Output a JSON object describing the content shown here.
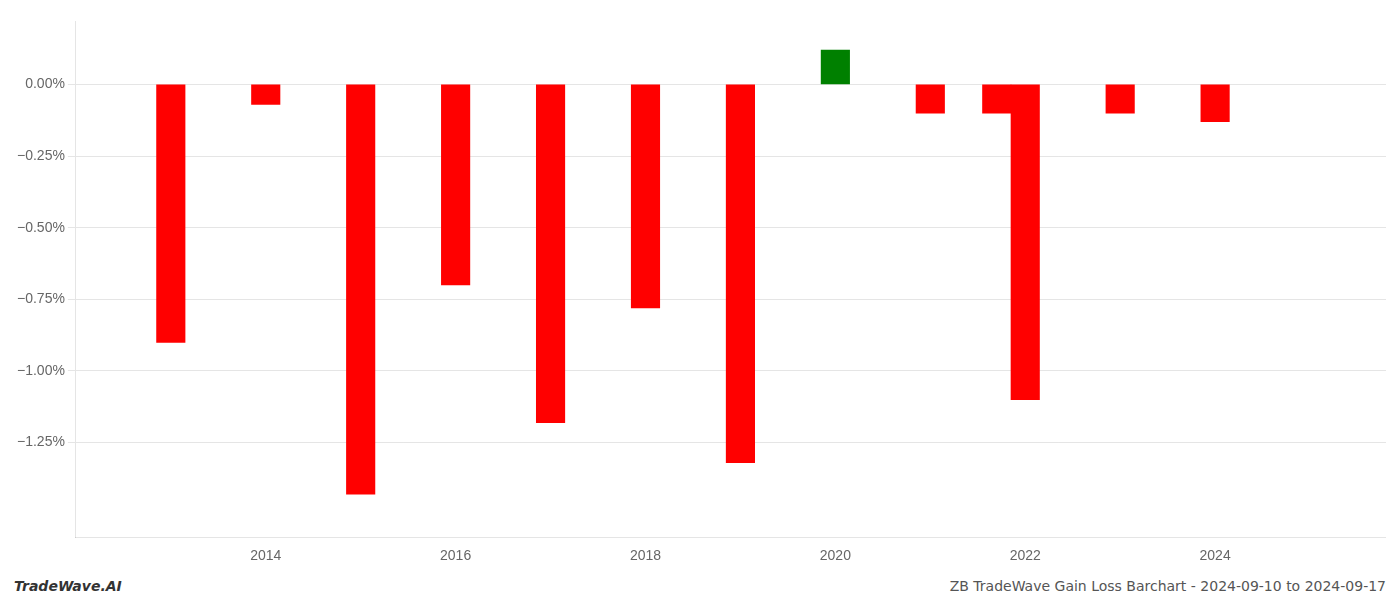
{
  "chart_data": {
    "type": "bar",
    "x": [
      2013,
      2014,
      2015,
      2016,
      2017,
      2018,
      2019,
      2020,
      2021,
      2021.7,
      2022,
      2023,
      2024
    ],
    "values": [
      -0.9,
      -0.07,
      -1.43,
      -0.7,
      -1.18,
      -0.78,
      -1.32,
      0.12,
      -0.1,
      -0.1,
      -1.1,
      -0.1,
      -0.13
    ],
    "colors": [
      "#ff0000",
      "#ff0000",
      "#ff0000",
      "#ff0000",
      "#ff0000",
      "#ff0000",
      "#ff0000",
      "#008000",
      "#ff0000",
      "#ff0000",
      "#ff0000",
      "#ff0000",
      "#ff0000"
    ],
    "xlim": [
      2012.0,
      2025.8
    ],
    "xticks": [
      2014,
      2016,
      2018,
      2020,
      2022,
      2024
    ],
    "ylim": [
      -1.58,
      0.22
    ],
    "yticks": [
      {
        "value": 0.0,
        "label": "0.00%"
      },
      {
        "value": -0.25,
        "label": "−0.25%"
      },
      {
        "value": -0.5,
        "label": "−0.50%"
      },
      {
        "value": -0.75,
        "label": "−0.75%"
      },
      {
        "value": -1.0,
        "label": "−1.00%"
      },
      {
        "value": -1.25,
        "label": "−1.25%"
      }
    ],
    "grid": "y",
    "annotations": [
      "TradeWave.AI",
      "ZB TradeWave Gain Loss Barchart - 2024-09-10 to 2024-09-17"
    ]
  }
}
